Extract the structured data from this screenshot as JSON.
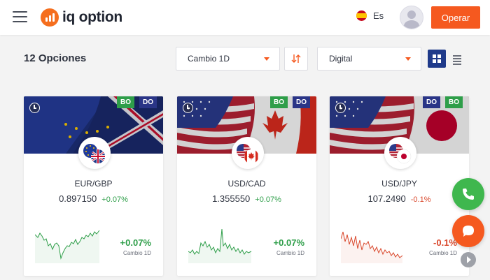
{
  "header": {
    "logo_text": "iq option",
    "logo_icon": "bar-chart-logo-icon",
    "language_label": "Es",
    "language_flag": "spain-flag-icon",
    "cta_label": "Operar",
    "accent_color": "#f5591f"
  },
  "toolbar": {
    "options_count_label": "12 Opciones",
    "sort_by": {
      "selected": "Cambio 1D"
    },
    "sort_direction_icon": "sort-arrows-icon",
    "instrument_type": {
      "selected": "Digital"
    },
    "view_mode": {
      "active": "grid",
      "options": [
        "grid",
        "list"
      ]
    }
  },
  "cards": [
    {
      "pair": "EUR/GBP",
      "price": "0.897150",
      "change": "+0.07%",
      "change_caption": "Cambio 1D",
      "trend": "positive",
      "tags": [
        "BO",
        "DO"
      ],
      "flags": [
        "eu-flag",
        "uk-flag"
      ]
    },
    {
      "pair": "USD/CAD",
      "price": "1.355550",
      "change": "+0.07%",
      "change_caption": "Cambio 1D",
      "trend": "positive",
      "tags": [
        "BO",
        "DO"
      ],
      "flags": [
        "us-flag",
        "canada-flag"
      ]
    },
    {
      "pair": "USD/JPY",
      "price": "107.2490",
      "change": "-0.1%",
      "change_caption": "Cambio 1D",
      "trend": "negative",
      "tags": [
        "DO",
        "BO"
      ],
      "flags": [
        "us-flag",
        "japan-flag"
      ]
    }
  ],
  "floating": {
    "phone_icon": "phone-icon",
    "chat_icon": "chat-bubble-icon",
    "scroll_icon": "chevron-right-icon"
  }
}
